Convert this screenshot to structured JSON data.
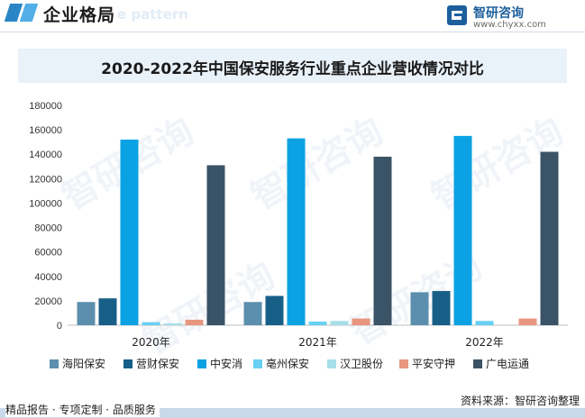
{
  "header": {
    "title": "企业格局",
    "ghost_text": "e pattern",
    "brand_name": "智研咨询",
    "brand_url": "www.chyxx.com"
  },
  "chart_data": {
    "type": "bar",
    "title": "2020-2022年中国保安服务行业重点企业营收情况对比",
    "xlabel": "",
    "ylabel": "",
    "ylim": [
      0,
      180000
    ],
    "yticks": [
      "0",
      "20000",
      "40000",
      "60000",
      "80000",
      "100000",
      "120000",
      "140000",
      "160000",
      "180000"
    ],
    "grid": false,
    "legend_position": "bottom",
    "categories": [
      "2020年",
      "2021年",
      "2022年"
    ],
    "series": [
      {
        "name": "海阳保安",
        "color": "#5b8fad",
        "values": [
          19000,
          19000,
          27000
        ]
      },
      {
        "name": "营财保安",
        "color": "#185f88",
        "values": [
          22000,
          24000,
          28000
        ]
      },
      {
        "name": "中安消",
        "color": "#0aa2e2",
        "values": [
          152000,
          153000,
          155000
        ]
      },
      {
        "name": "亳州保安",
        "color": "#67d0f3",
        "values": [
          2500,
          3000,
          3500
        ]
      },
      {
        "name": "汉卫股份",
        "color": "#a6dfe7",
        "values": [
          1500,
          3500,
          null
        ]
      },
      {
        "name": "平安守押",
        "color": "#e89680",
        "values": [
          4500,
          5500,
          5500
        ]
      },
      {
        "name": "广电运通",
        "color": "#3b5366",
        "values": [
          131000,
          138000,
          142000
        ]
      }
    ]
  },
  "footer": {
    "left_text": "精品报告 · 专项定制 · 品质服务",
    "source_text": "资料来源：智研咨询整理"
  },
  "watermark": "智研咨询"
}
